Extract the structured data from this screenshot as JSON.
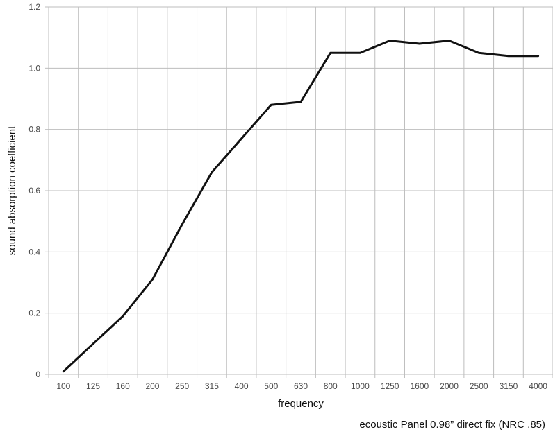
{
  "chart_data": {
    "type": "line",
    "categories": [
      "100",
      "125",
      "160",
      "200",
      "250",
      "315",
      "400",
      "500",
      "630",
      "800",
      "1000",
      "1250",
      "1600",
      "2000",
      "2500",
      "3150",
      "4000"
    ],
    "series": [
      {
        "values": [
          0.01,
          0.1,
          0.19,
          0.31,
          0.49,
          0.66,
          0.77,
          0.88,
          0.89,
          1.05,
          1.05,
          1.09,
          1.08,
          1.09,
          1.05,
          1.04,
          1.04
        ]
      }
    ],
    "xlabel": "frequency",
    "ylabel": "sound absorption coefficient",
    "caption": "ecoustic Panel 0.98” direct fix (NRC .85)",
    "ylim": [
      0,
      1.2
    ],
    "yticks": [
      0,
      0.2,
      0.4,
      0.6,
      0.8,
      1.0,
      1.2
    ],
    "ytick_labels": [
      "0",
      "0.2",
      "0.4",
      "0.6",
      "0.8",
      "1.0",
      "1.2"
    ],
    "grid": true,
    "legend": "none",
    "colors": {
      "line": "#111111",
      "grid": "#bdbdbd",
      "tick_text": "#4a4a4a"
    }
  }
}
